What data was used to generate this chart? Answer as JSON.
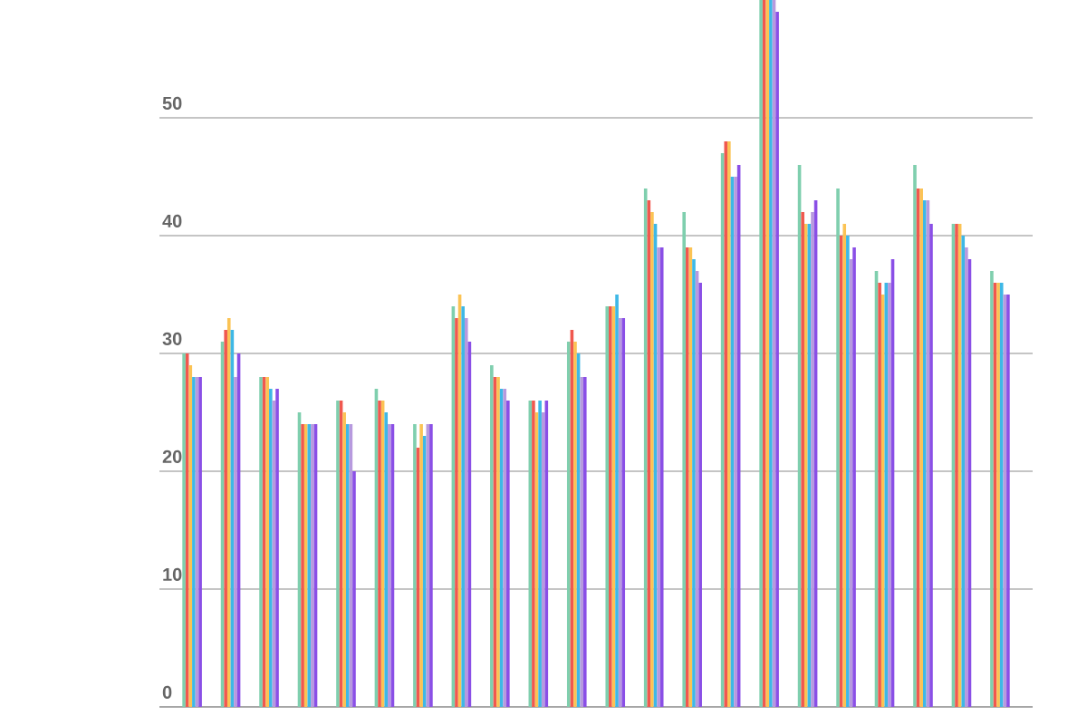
{
  "chart_data": {
    "type": "bar",
    "categories": [
      null,
      null,
      null,
      null,
      null,
      null,
      null,
      null,
      null,
      null,
      null,
      null,
      null,
      null,
      null,
      null,
      null,
      null,
      null,
      null,
      null,
      null
    ],
    "series": [
      {
        "color": "#7fcfae",
        "values": [
          30,
          31,
          28,
          25,
          26,
          27,
          24,
          34,
          29,
          26,
          31,
          34,
          44,
          42,
          47,
          60,
          46,
          44,
          37,
          46,
          41,
          37
        ]
      },
      {
        "color": "#f0584f",
        "values": [
          30,
          32,
          28,
          24,
          26,
          26,
          22,
          33,
          28,
          26,
          32,
          34,
          43,
          39,
          48,
          60,
          42,
          40,
          36,
          44,
          41,
          36
        ]
      },
      {
        "color": "#fbc354",
        "values": [
          29,
          33,
          28,
          24,
          25,
          26,
          24,
          35,
          28,
          25,
          31,
          34,
          42,
          39,
          48,
          60,
          41,
          41,
          35,
          44,
          41,
          36
        ]
      },
      {
        "color": "#3eb8e6",
        "values": [
          28,
          32,
          27,
          24,
          24,
          25,
          23,
          34,
          27,
          26,
          30,
          35,
          41,
          38,
          45,
          60,
          41,
          40,
          36,
          43,
          40,
          36
        ]
      },
      {
        "color": "#b79ade",
        "values": [
          28,
          28,
          26,
          24,
          24,
          24,
          24,
          33,
          27,
          25,
          28,
          33,
          39,
          37,
          45,
          60,
          42,
          38,
          36,
          43,
          39,
          35
        ]
      },
      {
        "color": "#8a4fe6",
        "values": [
          28,
          30,
          27,
          24,
          20,
          24,
          24,
          31,
          26,
          26,
          28,
          33,
          39,
          36,
          46,
          59,
          43,
          39,
          38,
          41,
          38,
          35
        ]
      }
    ],
    "ylim": [
      0,
      60
    ],
    "yticks": [
      0,
      10,
      20,
      30,
      40,
      50
    ],
    "grid": "y",
    "tick_labels": "y"
  }
}
